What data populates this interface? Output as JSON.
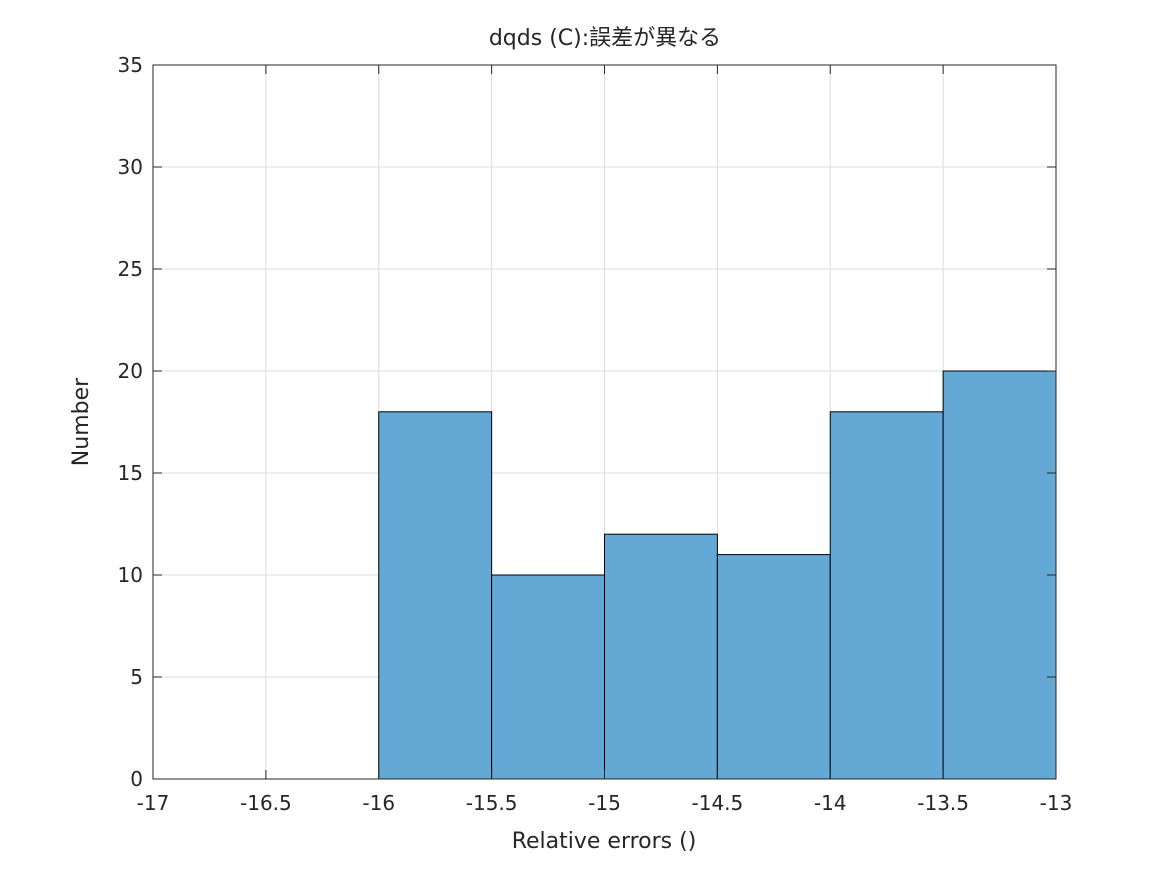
{
  "chart_data": {
    "type": "bar",
    "title": "dqds (C):誤差が異なる",
    "xlabel": "Relative errors ()",
    "ylabel": "Number",
    "xlim": [
      -17,
      -13
    ],
    "ylim": [
      0,
      35
    ],
    "xticks": [
      -17,
      -16.5,
      -16,
      -15.5,
      -15,
      -14.5,
      -14,
      -13.5,
      -13
    ],
    "xtick_labels": [
      "-17",
      "-16.5",
      "-16",
      "-15.5",
      "-15",
      "-14.5",
      "-14",
      "-13.5",
      "-13"
    ],
    "yticks": [
      0,
      5,
      10,
      15,
      20,
      25,
      30,
      35
    ],
    "ytick_labels": [
      "0",
      "5",
      "10",
      "15",
      "20",
      "25",
      "30",
      "35"
    ],
    "grid": true,
    "bins": [
      {
        "x0": -16.0,
        "x1": -15.5,
        "count": 18
      },
      {
        "x0": -15.5,
        "x1": -15.0,
        "count": 10
      },
      {
        "x0": -15.0,
        "x1": -14.5,
        "count": 12
      },
      {
        "x0": -14.5,
        "x1": -14.0,
        "count": 11
      },
      {
        "x0": -14.0,
        "x1": -13.5,
        "count": 18
      },
      {
        "x0": -13.5,
        "x1": -13.0,
        "count": 20
      }
    ],
    "colors": {
      "bar_fill": "#64a8d6",
      "bar_edge": "#000000",
      "grid": "#dcdcdc",
      "axis": "#262626"
    }
  }
}
